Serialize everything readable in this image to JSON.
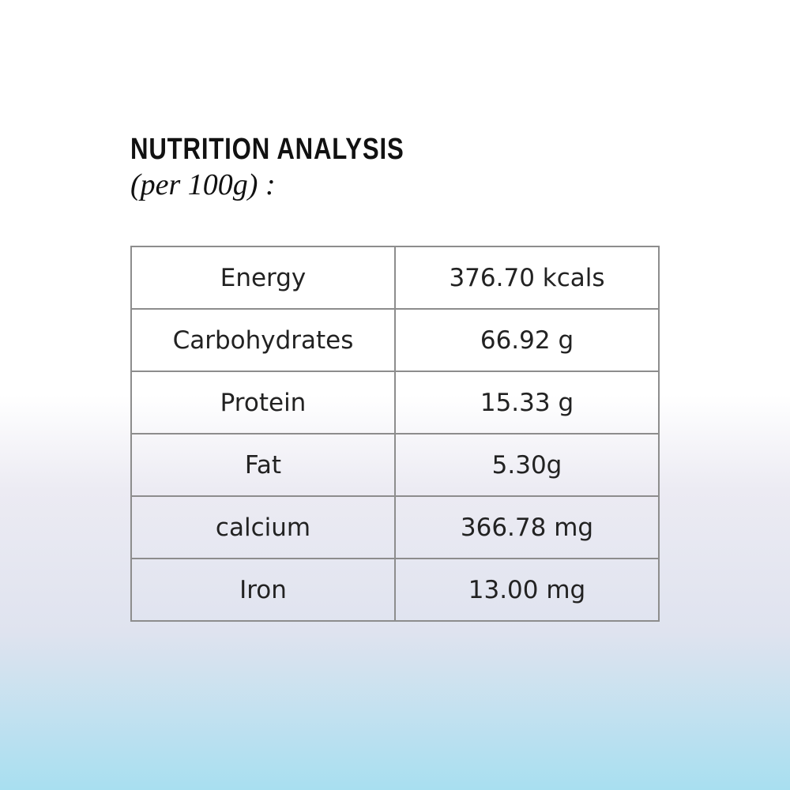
{
  "header": {
    "title": "NUTRITION ANALYSIS",
    "subtitle": "(per 100g) :"
  },
  "table": {
    "rows": [
      [
        "Energy",
        "376.70 kcals"
      ],
      [
        "Carbohydrates",
        "66.92 g"
      ],
      [
        "Protein",
        "15.33 g"
      ],
      [
        "Fat",
        "5.30g"
      ],
      [
        "calcium",
        "366.78 mg"
      ],
      [
        "Iron",
        "13.00 mg"
      ]
    ]
  }
}
